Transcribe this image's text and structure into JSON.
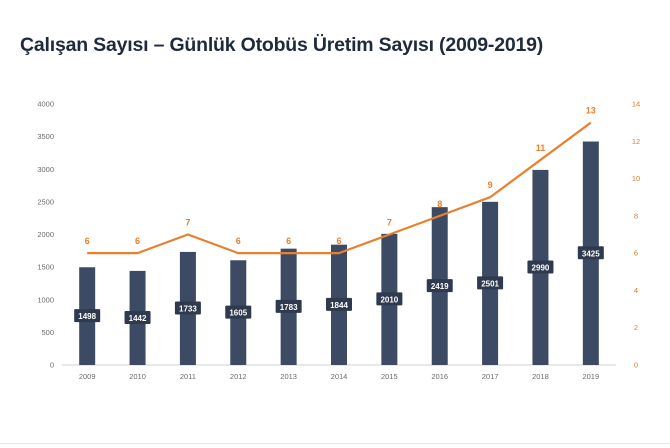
{
  "title": "Çalışan Sayısı – Günlük Otobüs Üretim Sayısı (2009-2019)",
  "chart_data": {
    "type": "bar",
    "title": "Çalışan Sayısı – Günlük Otobüs Üretim Sayısı (2009-2019)",
    "categories": [
      "2009",
      "2010",
      "2011",
      "2012",
      "2013",
      "2014",
      "2015",
      "2016",
      "2017",
      "2018",
      "2019"
    ],
    "series": [
      {
        "type": "bar",
        "axis": "left",
        "values": [
          1498,
          1442,
          1733,
          1605,
          1783,
          1844,
          2010,
          2419,
          2501,
          2990,
          3425
        ],
        "color": "#3d4a63"
      },
      {
        "type": "line",
        "axis": "right",
        "values": [
          6,
          6,
          7,
          6,
          6,
          6,
          7,
          8,
          9,
          11,
          13
        ],
        "color": "#e8802e"
      }
    ],
    "ylim": [
      0,
      4000
    ],
    "yticks": [
      0,
      500,
      1000,
      1500,
      2000,
      2500,
      3000,
      3500,
      4000
    ],
    "y2lim": [
      0,
      14
    ],
    "y2ticks": [
      0,
      2,
      4,
      6,
      8,
      10,
      12,
      14
    ],
    "grid": false,
    "legend": "none"
  }
}
